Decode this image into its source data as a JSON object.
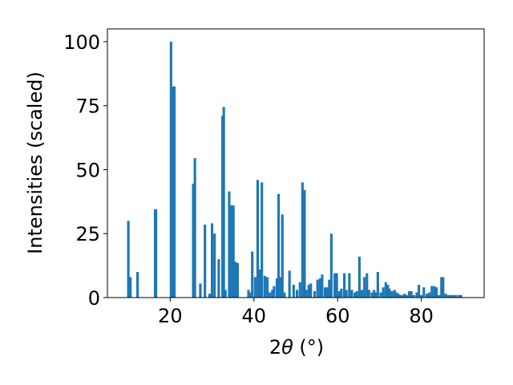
{
  "chart_data": {
    "type": "bar",
    "xlabel_prefix": "2",
    "xlabel_symbol": "θ",
    "xlabel_unit": " (°)",
    "ylabel": "Intensities (scaled)",
    "xlim": [
      5,
      95
    ],
    "ylim": [
      0,
      105
    ],
    "xticks": [
      20,
      40,
      60,
      80
    ],
    "yticks": [
      0,
      25,
      50,
      75,
      100
    ],
    "bar_color": "#1f77b4",
    "bar_width": 0.6,
    "x": [
      10.0,
      10.5,
      12.2,
      16.4,
      16.6,
      20.2,
      20.7,
      21.0,
      25.5,
      25.9,
      27.2,
      28.3,
      29.4,
      30.0,
      30.6,
      31.6,
      32.5,
      32.8,
      33.2,
      34.1,
      34.6,
      35.1,
      35.6,
      36.1,
      38.7,
      39.3,
      39.6,
      40.3,
      40.9,
      41.4,
      41.9,
      42.6,
      43.2,
      43.8,
      44.4,
      44.8,
      45.5,
      45.9,
      46.3,
      46.8,
      47.3,
      48.5,
      49.5,
      50.3,
      51.0,
      51.6,
      52.1,
      52.5,
      53.1,
      53.6,
      54.5,
      55.2,
      55.8,
      56.3,
      57.0,
      57.5,
      58.0,
      58.5,
      59.3,
      59.8,
      60.4,
      60.9,
      61.6,
      62.1,
      62.8,
      63.4,
      64.1,
      64.6,
      65.2,
      65.8,
      66.4,
      67.0,
      67.5,
      68.2,
      68.7,
      69.1,
      69.6,
      70.3,
      70.9,
      71.5,
      72.0,
      72.4,
      73.0,
      73.6,
      74.1,
      74.5,
      75.0,
      75.5,
      76.0,
      76.5,
      77.1,
      77.6,
      78.2,
      78.9,
      79.4,
      80.0,
      80.6,
      81.3,
      81.9,
      82.5,
      83.1,
      83.6,
      84.2,
      84.8,
      85.2,
      85.8,
      86.4,
      87.0,
      87.6,
      88.2,
      88.9,
      89.5
    ],
    "values": [
      30,
      8,
      10,
      34.5,
      34.5,
      100,
      82.5,
      82.5,
      44.5,
      54.5,
      5.5,
      28.5,
      1.5,
      29,
      25,
      15,
      71,
      74.5,
      3,
      41.5,
      36,
      36,
      14,
      13.5,
      3,
      2,
      18,
      8,
      46,
      11,
      45,
      8.5,
      8,
      2,
      3,
      4.5,
      7.5,
      40.5,
      8,
      32.5,
      2,
      10.5,
      5,
      3,
      6,
      45,
      42,
      3,
      5,
      5.5,
      2.5,
      7,
      7.5,
      9,
      4,
      4,
      7,
      25,
      9.5,
      9.5,
      2.5,
      3.5,
      9.5,
      3,
      9.5,
      3,
      2,
      2.5,
      16,
      3,
      8,
      9.5,
      3,
      2,
      3,
      2,
      10,
      2,
      4,
      6,
      5,
      3.5,
      2.5,
      3,
      2,
      1.5,
      1,
      1,
      1.5,
      1,
      2.5,
      2.5,
      1,
      2,
      5,
      1,
      4,
      1.5,
      2,
      4.5,
      4.5,
      4,
      1,
      8,
      8,
      1.5,
      1,
      1,
      1,
      1,
      1,
      1
    ]
  }
}
